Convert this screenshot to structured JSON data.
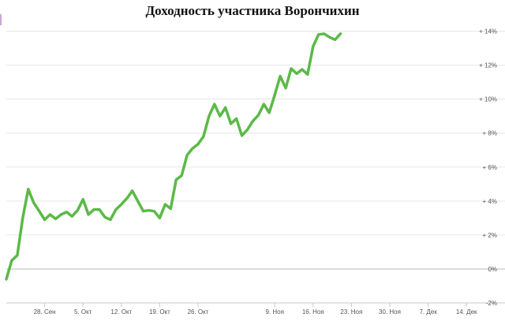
{
  "chart_data": {
    "type": "line",
    "title": "Доходность участника Ворончихин",
    "xlabel": "",
    "ylabel": "",
    "grid": true,
    "legend": "none",
    "ylim": [
      -2,
      15
    ],
    "x_range": [
      0,
      87
    ],
    "y_ticks": [
      -2,
      0,
      2,
      4,
      6,
      8,
      10,
      12,
      14
    ],
    "y_tick_labels": [
      "-2%",
      "0%",
      "+ 2%",
      "+ 4%",
      "+ 6%",
      "+ 8%",
      "+ 10%",
      "+ 12%",
      "+ 14%"
    ],
    "x_ticks": [
      {
        "pos": 7,
        "label": "28. Сен"
      },
      {
        "pos": 14,
        "label": "5. Окт"
      },
      {
        "pos": 21,
        "label": "12. Окт"
      },
      {
        "pos": 28,
        "label": "19. Окт"
      },
      {
        "pos": 35,
        "label": "26. Окт"
      },
      {
        "pos": 49,
        "label": "9. Ноя"
      },
      {
        "pos": 56,
        "label": "16. Ноя"
      },
      {
        "pos": 63,
        "label": "23. Ноя"
      },
      {
        "pos": 70,
        "label": "30. Ноя"
      },
      {
        "pos": 77,
        "label": "7. Дек"
      },
      {
        "pos": 84,
        "label": "14. Дек"
      }
    ],
    "line_color": "#5cb947",
    "series": [
      {
        "points": [
          [
            0,
            -0.6
          ],
          [
            1,
            0.5
          ],
          [
            2,
            0.8
          ],
          [
            3,
            3.0
          ],
          [
            4,
            4.7
          ],
          [
            5,
            3.9
          ],
          [
            6,
            3.4
          ],
          [
            7,
            2.9
          ],
          [
            8,
            3.2
          ],
          [
            9,
            2.95
          ],
          [
            10,
            3.2
          ],
          [
            11,
            3.35
          ],
          [
            12,
            3.1
          ],
          [
            13,
            3.45
          ],
          [
            14,
            4.1
          ],
          [
            15,
            3.2
          ],
          [
            16,
            3.5
          ],
          [
            17,
            3.5
          ],
          [
            18,
            3.05
          ],
          [
            19,
            2.9
          ],
          [
            20,
            3.5
          ],
          [
            21,
            3.8
          ],
          [
            22,
            4.15
          ],
          [
            23,
            4.6
          ],
          [
            24,
            4.0
          ],
          [
            25,
            3.4
          ],
          [
            26,
            3.45
          ],
          [
            27,
            3.4
          ],
          [
            28,
            3.0
          ],
          [
            29,
            3.8
          ],
          [
            30,
            3.55
          ],
          [
            31,
            5.25
          ],
          [
            32,
            5.5
          ],
          [
            33,
            6.7
          ],
          [
            34,
            7.1
          ],
          [
            35,
            7.35
          ],
          [
            36,
            7.8
          ],
          [
            37,
            9.0
          ],
          [
            38,
            9.7
          ],
          [
            39,
            9.0
          ],
          [
            40,
            9.5
          ],
          [
            41,
            8.55
          ],
          [
            42,
            8.85
          ],
          [
            43,
            7.85
          ],
          [
            44,
            8.2
          ],
          [
            45,
            8.7
          ],
          [
            46,
            9.05
          ],
          [
            47,
            9.7
          ],
          [
            48,
            9.2
          ],
          [
            49,
            10.25
          ],
          [
            50,
            11.35
          ],
          [
            51,
            10.65
          ],
          [
            52,
            11.8
          ],
          [
            53,
            11.5
          ],
          [
            54,
            11.75
          ],
          [
            55,
            11.45
          ],
          [
            56,
            13.1
          ],
          [
            57,
            13.8
          ],
          [
            58,
            13.85
          ],
          [
            59,
            13.65
          ],
          [
            60,
            13.5
          ],
          [
            61,
            13.85
          ]
        ]
      }
    ]
  }
}
